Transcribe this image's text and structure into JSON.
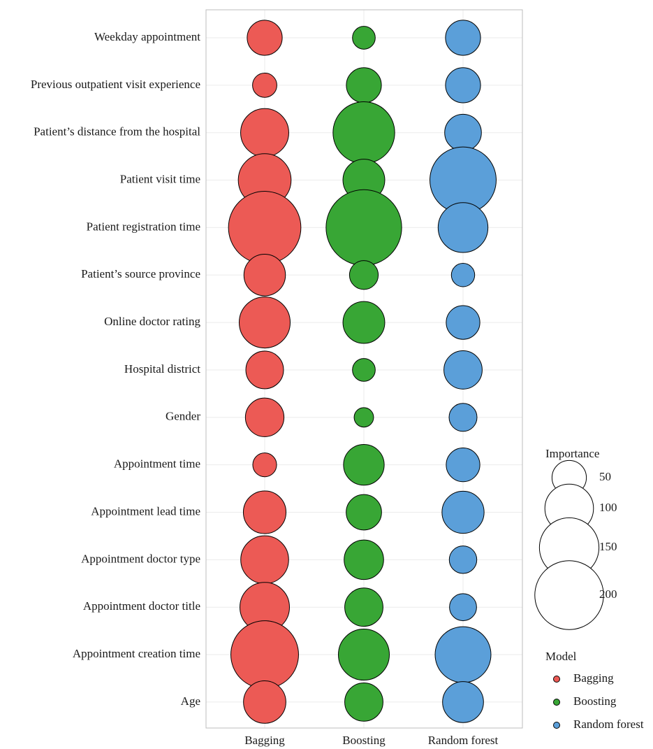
{
  "chart_data": {
    "type": "scatter",
    "subtype": "bubble",
    "title": "",
    "xlabel": "",
    "ylabel": "",
    "categories_x": [
      "Bagging",
      "Boosting",
      "Random forest"
    ],
    "categories_y": [
      "Weekday appointment",
      "Previous outpatient visit experience",
      "Patient’s distance from the hospital",
      "Patient visit time",
      "Patient registration time",
      "Patient’s source province",
      "Online doctor rating",
      "Hospital district",
      "Gender",
      "Appointment time",
      "Appointment lead time",
      "Appointment doctor type",
      "Appointment doctor title",
      "Appointment creation time",
      "Age"
    ],
    "series": [
      {
        "name": "Bagging",
        "color": "#EC5A55",
        "values": [
          52,
          25,
          98,
          118,
          222,
          73,
          110,
          60,
          63,
          24,
          77,
          97,
          104,
          194,
          76
        ]
      },
      {
        "name": "Boosting",
        "color": "#38A635",
        "values": [
          22,
          52,
          161,
          74,
          242,
          35,
          74,
          22,
          16,
          70,
          53,
          66,
          62,
          110,
          62
        ]
      },
      {
        "name": "Random forest",
        "color": "#5B9FD9",
        "values": [
          52,
          52,
          57,
          186,
          105,
          23,
          48,
          62,
          33,
          48,
          75,
          32,
          31,
          132,
          71
        ]
      }
    ],
    "legend": {
      "size_title": "Importance",
      "size_breaks": [
        50,
        100,
        150,
        200
      ],
      "color_title": "Model",
      "color_entries": [
        "Bagging",
        "Boosting",
        "Random forest"
      ],
      "placement": "right"
    },
    "grid": true
  }
}
